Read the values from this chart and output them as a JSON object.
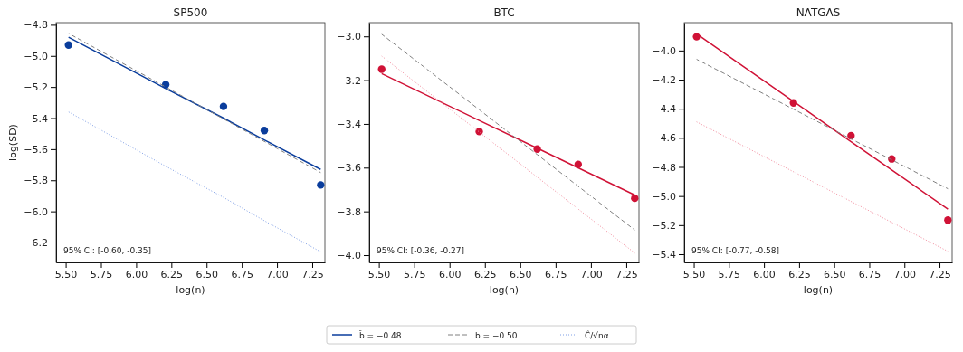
{
  "chart_data": [
    {
      "type": "scatter",
      "title": "SP500",
      "xlabel": "log($_{}$n)",
      "ylabel": "log(SD)",
      "legend": "bottom",
      "xlim": [
        5.432,
        7.34
      ],
      "ylim": [
        -6.328,
        -4.786
      ],
      "xticks": [
        {
          "value": 5.5,
          "label": "5.50"
        },
        {
          "value": 5.75,
          "label": "5.75"
        },
        {
          "value": 6,
          "label": "6.00"
        },
        {
          "value": 6.25,
          "label": "6.25"
        },
        {
          "value": 6.5,
          "label": "6.50"
        },
        {
          "value": 6.75,
          "label": "6.75"
        },
        {
          "value": 7,
          "label": "7.00"
        },
        {
          "value": 7.25,
          "label": "7.25"
        }
      ],
      "yticks": [
        {
          "value": -6.2,
          "label": "−6.2"
        },
        {
          "value": -6.0,
          "label": "−6.0"
        },
        {
          "value": -5.8,
          "label": "−5.8"
        },
        {
          "value": -5.6,
          "label": "−5.6"
        },
        {
          "value": -5.4,
          "label": "−5.4"
        },
        {
          "value": -5.2,
          "label": "−5.2"
        },
        {
          "value": -5.0,
          "label": "−5.0"
        },
        {
          "value": -4.8,
          "label": "−4.8"
        }
      ],
      "x": [
        5.52,
        6.21,
        6.62,
        6.91,
        7.31
      ],
      "annotations": [
        "95% CI: [-0.60, -0.35]"
      ],
      "series": [
        {
          "marker": "circle",
          "color": "#0a3d9c",
          "values": [
            -4.93,
            -5.185,
            -5.325,
            -5.48,
            -5.83
          ]
        },
        {
          "type": "line",
          "name": "b̂ = −0.48",
          "color": "#0a3d9c",
          "line_style": "solid",
          "values": [
            -4.88,
            -5.21,
            -5.4,
            -5.54,
            -5.73
          ]
        },
        {
          "type": "line",
          "name": "b = −0.50",
          "color": "#808080",
          "line_style": "dashed",
          "values": [
            -4.855,
            -5.2,
            -5.405,
            -5.55,
            -5.75
          ]
        },
        {
          "type": "line",
          "name": "Ĉ/√nα",
          "color": "#7f9fe6",
          "line_style": "dotted",
          "values": [
            -5.36,
            -5.71,
            -5.91,
            -6.06,
            -6.26
          ]
        }
      ]
    },
    {
      "type": "scatter",
      "title": "BTC",
      "xlabel": "log($_{}$n)",
      "xlim": [
        5.432,
        7.34
      ],
      "ylim": [
        -4.033,
        -2.937
      ],
      "xticks": [
        {
          "value": 5.5,
          "label": "5.50"
        },
        {
          "value": 5.75,
          "label": "5.75"
        },
        {
          "value": 6,
          "label": "6.00"
        },
        {
          "value": 6.25,
          "label": "6.25"
        },
        {
          "value": 6.5,
          "label": "6.50"
        },
        {
          "value": 6.75,
          "label": "6.75"
        },
        {
          "value": 7,
          "label": "7.00"
        },
        {
          "value": 7.25,
          "label": "7.25"
        }
      ],
      "yticks": [
        {
          "value": -4.0,
          "label": "−4.0"
        },
        {
          "value": -3.8,
          "label": "−3.8"
        },
        {
          "value": -3.6,
          "label": "−3.6"
        },
        {
          "value": -3.4,
          "label": "−3.4"
        },
        {
          "value": -3.2,
          "label": "−3.2"
        },
        {
          "value": -3.0,
          "label": "−3.0"
        }
      ],
      "x": [
        5.52,
        6.21,
        6.62,
        6.91,
        7.31
      ],
      "annotations": [
        "95% CI: [-0.36, -0.27]"
      ],
      "series": [
        {
          "marker": "circle",
          "color": "#d01236",
          "values": [
            -3.15,
            -3.435,
            -3.515,
            -3.585,
            -3.74
          ]
        },
        {
          "type": "line",
          "color": "#d01236",
          "line_style": "solid",
          "values": [
            -3.17,
            -3.384,
            -3.511,
            -3.601,
            -3.725
          ]
        },
        {
          "type": "line",
          "color": "#808080",
          "line_style": "dashed",
          "values": [
            -2.99,
            -3.335,
            -3.54,
            -3.685,
            -3.885
          ]
        },
        {
          "type": "line",
          "color": "#f28a9c",
          "line_style": "dotted",
          "values": [
            -3.09,
            -3.437,
            -3.643,
            -3.789,
            -3.99
          ]
        }
      ]
    },
    {
      "type": "scatter",
      "title": "NATGAS",
      "xlabel": "log($_{}$n)",
      "xlim": [
        5.432,
        7.34
      ],
      "ylim": [
        -5.456,
        -3.808
      ],
      "xticks": [
        {
          "value": 5.5,
          "label": "5.50"
        },
        {
          "value": 5.75,
          "label": "5.75"
        },
        {
          "value": 6,
          "label": "6.00"
        },
        {
          "value": 6.25,
          "label": "6.25"
        },
        {
          "value": 6.5,
          "label": "6.50"
        },
        {
          "value": 6.75,
          "label": "6.75"
        },
        {
          "value": 7,
          "label": "7.00"
        },
        {
          "value": 7.25,
          "label": "7.25"
        }
      ],
      "yticks": [
        {
          "value": -5.4,
          "label": "−5.4"
        },
        {
          "value": -5.2,
          "label": "−5.2"
        },
        {
          "value": -5.0,
          "label": "−5.0"
        },
        {
          "value": -4.8,
          "label": "−4.8"
        },
        {
          "value": -4.6,
          "label": "−4.6"
        },
        {
          "value": -4.4,
          "label": "−4.4"
        },
        {
          "value": -4.2,
          "label": "−4.2"
        },
        {
          "value": -4.0,
          "label": "−4.0"
        }
      ],
      "x": [
        5.52,
        6.21,
        6.62,
        6.91,
        7.31
      ],
      "annotations": [
        "95% CI: [-0.77, -0.58]"
      ],
      "series": [
        {
          "marker": "circle",
          "color": "#d01236",
          "values": [
            -3.905,
            -4.36,
            -4.585,
            -4.745,
            -5.165
          ]
        },
        {
          "type": "line",
          "color": "#d01236",
          "line_style": "solid",
          "values": [
            -3.885,
            -4.35,
            -4.626,
            -4.821,
            -5.09
          ]
        },
        {
          "type": "line",
          "color": "#808080",
          "line_style": "dashed",
          "values": [
            -4.06,
            -4.403,
            -4.607,
            -4.751,
            -4.95
          ]
        },
        {
          "type": "line",
          "color": "#f28a9c",
          "line_style": "dotted",
          "values": [
            -4.49,
            -4.833,
            -5.037,
            -5.181,
            -5.38
          ]
        }
      ]
    }
  ]
}
